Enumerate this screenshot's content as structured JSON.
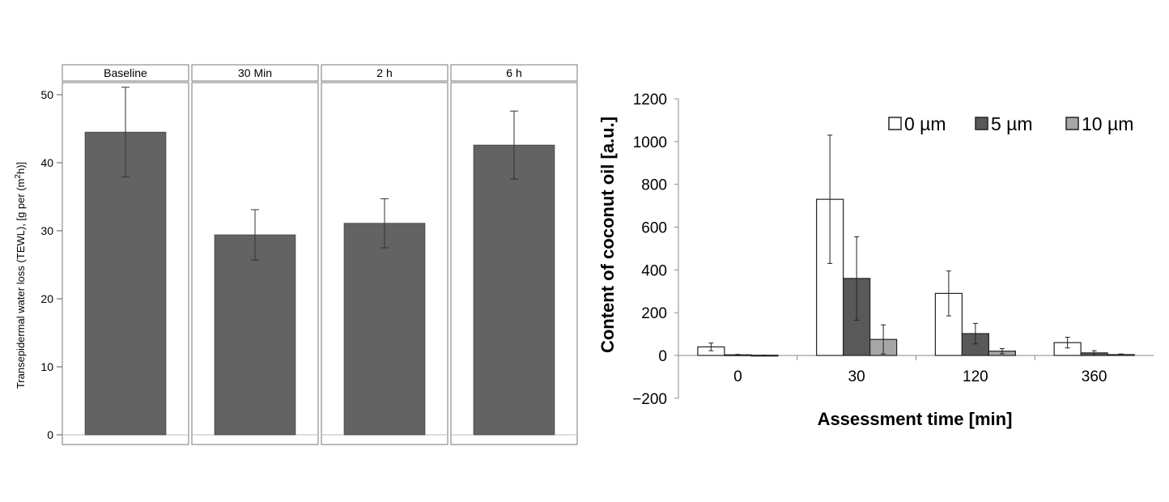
{
  "chart_data": [
    {
      "type": "bar",
      "panels": [
        "Baseline",
        "30 Min",
        "2 h",
        "6 h"
      ],
      "values": [
        44.5,
        29.4,
        31.1,
        42.6
      ],
      "errors": [
        6.6,
        3.7,
        3.6,
        5.0
      ],
      "ylabel": "Transepidermal water loss (TEWL), [g per (m²h)]",
      "ylabel_main": "Transepidermal water loss (TEWL), [g per (m",
      "ylabel_sup": "2",
      "ylabel_tail": "h)]",
      "yticks": [
        "0",
        "10",
        "20",
        "30",
        "40",
        "50"
      ],
      "ylim": [
        0,
        52
      ],
      "bar_color": "#636363"
    },
    {
      "type": "bar",
      "categories": [
        "0",
        "30",
        "120",
        "360"
      ],
      "series": [
        {
          "name": "0 µm",
          "values": [
            40,
            730,
            290,
            60
          ],
          "errors": [
            18,
            300,
            105,
            25
          ],
          "color": "#ffffff"
        },
        {
          "name": "5 µm",
          "values": [
            3,
            360,
            102,
            12
          ],
          "errors": [
            2,
            195,
            48,
            10
          ],
          "color": "#595959"
        },
        {
          "name": "10 µm",
          "values": [
            1,
            75,
            20,
            4
          ],
          "errors": [
            1,
            68,
            12,
            3
          ],
          "color": "#a6a6a6"
        }
      ],
      "ylabel": "Content of coconut oil [a.u.]",
      "xlabel": "Assessment time [min]",
      "yticks": [
        "1200",
        "1000",
        "800",
        "600",
        "400",
        "200",
        "0",
        "−200"
      ],
      "ylim": [
        -200,
        1200
      ],
      "legend_position": "top-right"
    }
  ]
}
